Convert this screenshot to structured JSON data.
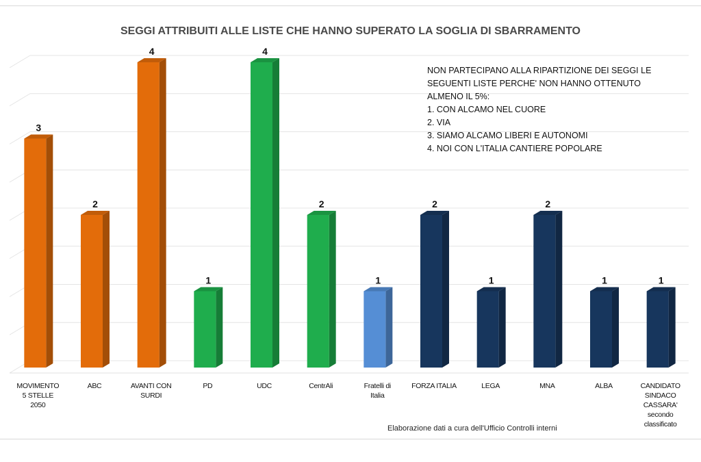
{
  "chart_data": {
    "type": "bar",
    "title": "SEGGI ATTRIBUITI ALLE LISTE CHE HANNO SUPERATO LA SOGLIA DI SBARRAMENTO",
    "categories": [
      "MOVIMENTO 5 STELLE 2050",
      "ABC",
      "AVANTI CON SURDI",
      "PD",
      "UDC",
      "CentrAli",
      "Fratelli di Italia",
      "FORZA ITALIA",
      "LEGA",
      "MNA",
      "ALBA",
      "CANDIDATO SINDACO CASSARA' secondo classificato"
    ],
    "category_lines": [
      [
        "MOVIMENTO",
        "5 STELLE",
        "2050"
      ],
      [
        "ABC"
      ],
      [
        "AVANTI CON",
        "SURDI"
      ],
      [
        "PD"
      ],
      [
        "UDC"
      ],
      [
        "CentrAli"
      ],
      [
        "Fratelli di",
        "Italia"
      ],
      [
        "FORZA ITALIA"
      ],
      [
        "LEGA"
      ],
      [
        "MNA"
      ],
      [
        "ALBA"
      ],
      [
        "CANDIDATO",
        "SINDACO",
        "CASSARA'",
        "secondo",
        "classificato"
      ]
    ],
    "values": [
      3,
      2,
      4,
      1,
      4,
      2,
      1,
      2,
      1,
      2,
      1,
      1
    ],
    "colors": [
      "#e36c0a",
      "#e36c0a",
      "#e36c0a",
      "#1fad4d",
      "#1fad4d",
      "#1fad4d",
      "#558ed5",
      "#17365d",
      "#17365d",
      "#17365d",
      "#17365d",
      "#17365d"
    ],
    "ylim": [
      0,
      4
    ],
    "grid": true,
    "xlabel": "",
    "ylabel": ""
  },
  "note": {
    "lines": [
      "NON PARTECIPANO ALLA RIPARTIZIONE DEI SEGGI LE",
      "SEGUENTI LISTE PERCHE' NON HANNO OTTENUTO",
      "ALMENO IL 5%:",
      "1. CON ALCAMO NEL CUORE",
      "2. VIA",
      "3. SIAMO ALCAMO LIBERI E AUTONOMI",
      "4. NOI CON L'ITALIA CANTIERE POPOLARE"
    ]
  },
  "footer": "Elaborazione  dati a cura dell'Ufficio Controlli interni"
}
